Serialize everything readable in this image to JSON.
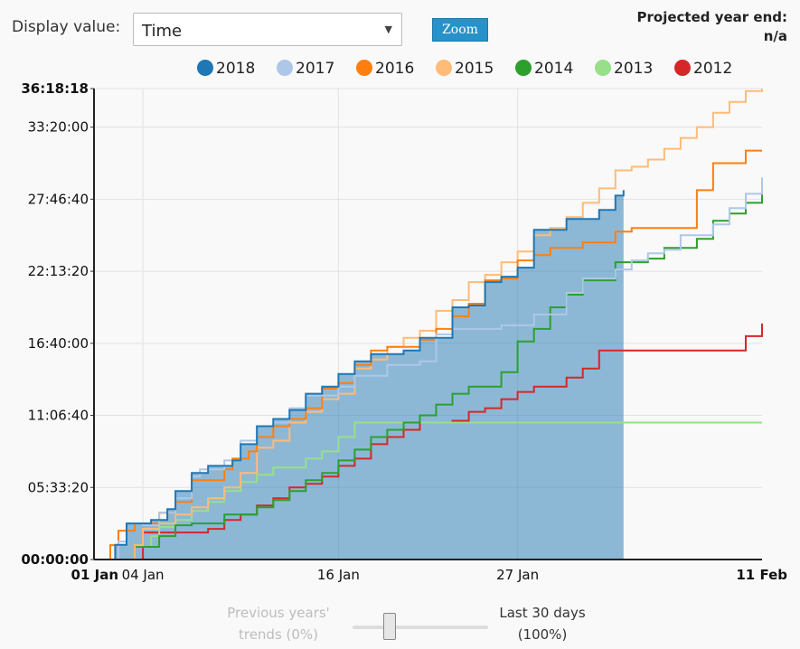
{
  "controls": {
    "display_label": "Display value:",
    "display_value": "Time",
    "zoom_label": "Zoom",
    "projected_title": "Projected year end:",
    "projected_value": "n/a"
  },
  "slider": {
    "left_label_line1": "Previous years'",
    "left_label_line2": "trends (0%)",
    "right_label_line1": "Last 30 days",
    "right_label_line2": "(100%)",
    "value_percent": 100
  },
  "chart_data": {
    "type": "line",
    "step": true,
    "xlim": [
      0,
      41
    ],
    "ylim": [
      0,
      130698
    ],
    "x_ticks": [
      {
        "day": 0,
        "label": "01 Jan",
        "bold": true
      },
      {
        "day": 3,
        "label": "04 Jan",
        "bold": false
      },
      {
        "day": 15,
        "label": "16 Jan",
        "bold": false
      },
      {
        "day": 26,
        "label": "27 Jan",
        "bold": false
      },
      {
        "day": 41,
        "label": "11 Feb",
        "bold": true
      }
    ],
    "y_ticks": [
      {
        "value": 0,
        "label": "00:00:00",
        "bold": true
      },
      {
        "value": 20000,
        "label": "05:33:20",
        "bold": false
      },
      {
        "value": 40000,
        "label": "11:06:40",
        "bold": false
      },
      {
        "value": 60000,
        "label": "16:40:00",
        "bold": false
      },
      {
        "value": 80000,
        "label": "22:13:20",
        "bold": false
      },
      {
        "value": 100000,
        "label": "27:46:40",
        "bold": false
      },
      {
        "value": 120000,
        "label": "33:20:00",
        "bold": false
      },
      {
        "value": 130698,
        "label": "36:18:18",
        "bold": true
      }
    ],
    "series": [
      {
        "name": "2018",
        "color": "#1f77b4",
        "fill": true,
        "x": [
          0,
          1,
          1.3,
          2,
          3.5,
          4.5,
          5,
          6,
          7,
          8.5,
          9,
          10,
          11,
          12,
          13,
          14,
          15,
          16,
          17,
          19,
          20,
          22,
          23,
          24,
          25,
          26,
          27,
          29,
          31,
          32,
          32.5
        ],
        "y": [
          0,
          0,
          4100,
          10000,
          11000,
          14000,
          19000,
          24000,
          26000,
          27500,
          32000,
          37000,
          39000,
          41500,
          46000,
          48000,
          51500,
          55000,
          57000,
          58000,
          61500,
          70000,
          70500,
          77000,
          78500,
          81000,
          91500,
          94500,
          97000,
          101000,
          102500
        ]
      },
      {
        "name": "2017",
        "color": "#aec7e8",
        "fill": false,
        "x": [
          0,
          1.5,
          2,
          3,
          4,
          5,
          6,
          6.5,
          8,
          9,
          10,
          11,
          12,
          13,
          15,
          16,
          18,
          20,
          21,
          22,
          25,
          27,
          29,
          30,
          32,
          33,
          34,
          35,
          36,
          38,
          39,
          40,
          41
        ],
        "y": [
          0,
          5000,
          10000,
          9500,
          13000,
          17000,
          23000,
          25000,
          27500,
          33000,
          37000,
          38000,
          42000,
          45500,
          48000,
          51000,
          54000,
          55000,
          62500,
          64000,
          65000,
          68000,
          74000,
          78000,
          80500,
          83000,
          85000,
          86000,
          90000,
          93000,
          97500,
          101500,
          106000
        ]
      },
      {
        "name": "2016",
        "color": "#ff7f0e",
        "fill": false,
        "x": [
          0,
          1,
          1.5,
          2.5,
          4,
          5,
          6,
          8,
          8.5,
          9.5,
          10,
          11,
          12,
          13,
          14,
          15,
          16,
          17,
          18,
          20,
          21,
          22,
          23,
          24,
          25,
          26,
          27,
          28,
          30,
          32,
          33,
          34,
          35,
          36,
          37,
          38,
          39,
          40,
          41
        ],
        "y": [
          0,
          4000,
          8000,
          10000,
          13000,
          16000,
          22000,
          25000,
          28000,
          30000,
          34000,
          37000,
          39000,
          42000,
          47500,
          49000,
          54000,
          58000,
          59000,
          61000,
          64000,
          67500,
          71000,
          77500,
          78000,
          83000,
          84500,
          86500,
          88000,
          91000,
          92000,
          92000,
          92000,
          92000,
          102500,
          110000,
          110000,
          113500,
          113500
        ]
      },
      {
        "name": "2015",
        "color": "#ffbb78",
        "fill": false,
        "x": [
          0,
          1,
          2.5,
          3,
          4,
          5,
          6,
          7,
          8,
          9,
          10,
          11,
          12,
          13,
          14,
          15,
          16,
          17,
          18,
          19,
          20,
          21,
          22,
          23,
          24,
          25,
          26,
          27,
          28,
          29,
          30,
          31,
          32,
          33,
          34,
          35,
          36,
          37,
          38,
          39,
          40,
          41
        ],
        "y": [
          0,
          0,
          4000,
          8500,
          10000,
          12500,
          14500,
          17000,
          20000,
          24000,
          31000,
          33000,
          38000,
          41000,
          44500,
          46000,
          53000,
          55500,
          59000,
          61500,
          63500,
          69000,
          72000,
          77000,
          79000,
          82500,
          85500,
          90000,
          92000,
          95000,
          99000,
          103000,
          108000,
          109000,
          111000,
          114000,
          117000,
          120000,
          124000,
          127000,
          130000,
          130698
        ]
      },
      {
        "name": "2014",
        "color": "#2ca02c",
        "fill": false,
        "x": [
          0,
          2.5,
          4,
          5,
          6,
          8,
          10,
          11,
          12,
          13,
          14,
          15,
          16,
          17,
          18,
          19,
          20,
          21,
          22,
          23,
          24,
          25,
          26,
          27,
          28,
          29,
          30,
          32,
          34,
          35,
          37,
          38,
          39,
          40,
          41
        ],
        "y": [
          0,
          3500,
          6500,
          9500,
          10000,
          12500,
          14500,
          16500,
          19000,
          22000,
          24000,
          27500,
          30500,
          34000,
          36000,
          38000,
          40000,
          43000,
          46000,
          48000,
          48000,
          52000,
          60500,
          64000,
          70000,
          73500,
          77500,
          82500,
          83500,
          86500,
          89000,
          94000,
          96000,
          99000,
          103000
        ]
      },
      {
        "name": "2013",
        "color": "#98df8a",
        "fill": false,
        "x": [
          0,
          2.5,
          3.5,
          4,
          5,
          6,
          7,
          8,
          9,
          10,
          11,
          13,
          14,
          15,
          16,
          18,
          20,
          22,
          25,
          30,
          35,
          41
        ],
        "y": [
          0,
          3500,
          6500,
          9000,
          11000,
          13500,
          16000,
          19000,
          21500,
          23500,
          25500,
          28000,
          30000,
          34000,
          38000,
          38000,
          38000,
          38000,
          38000,
          38000,
          38000,
          38000
        ]
      },
      {
        "name": "2012",
        "color": "#d62728",
        "fill": false,
        "x": [
          0,
          2,
          3,
          4,
          5,
          6,
          7,
          8,
          9,
          10,
          11,
          12,
          13,
          14,
          15,
          16,
          17,
          18,
          19,
          20,
          21,
          22,
          23,
          24,
          25,
          26,
          27,
          29,
          30,
          31,
          33,
          35,
          37,
          39,
          40,
          41
        ],
        "y": [
          0,
          0,
          7500,
          7500,
          7500,
          7500,
          8500,
          11000,
          12500,
          15000,
          17000,
          20000,
          21000,
          23000,
          26000,
          28000,
          32000,
          34000,
          36000,
          38000,
          38000,
          38500,
          41000,
          42000,
          44500,
          46500,
          48000,
          50500,
          53000,
          58000,
          58000,
          58000,
          58000,
          58000,
          62000,
          65500
        ]
      }
    ]
  }
}
